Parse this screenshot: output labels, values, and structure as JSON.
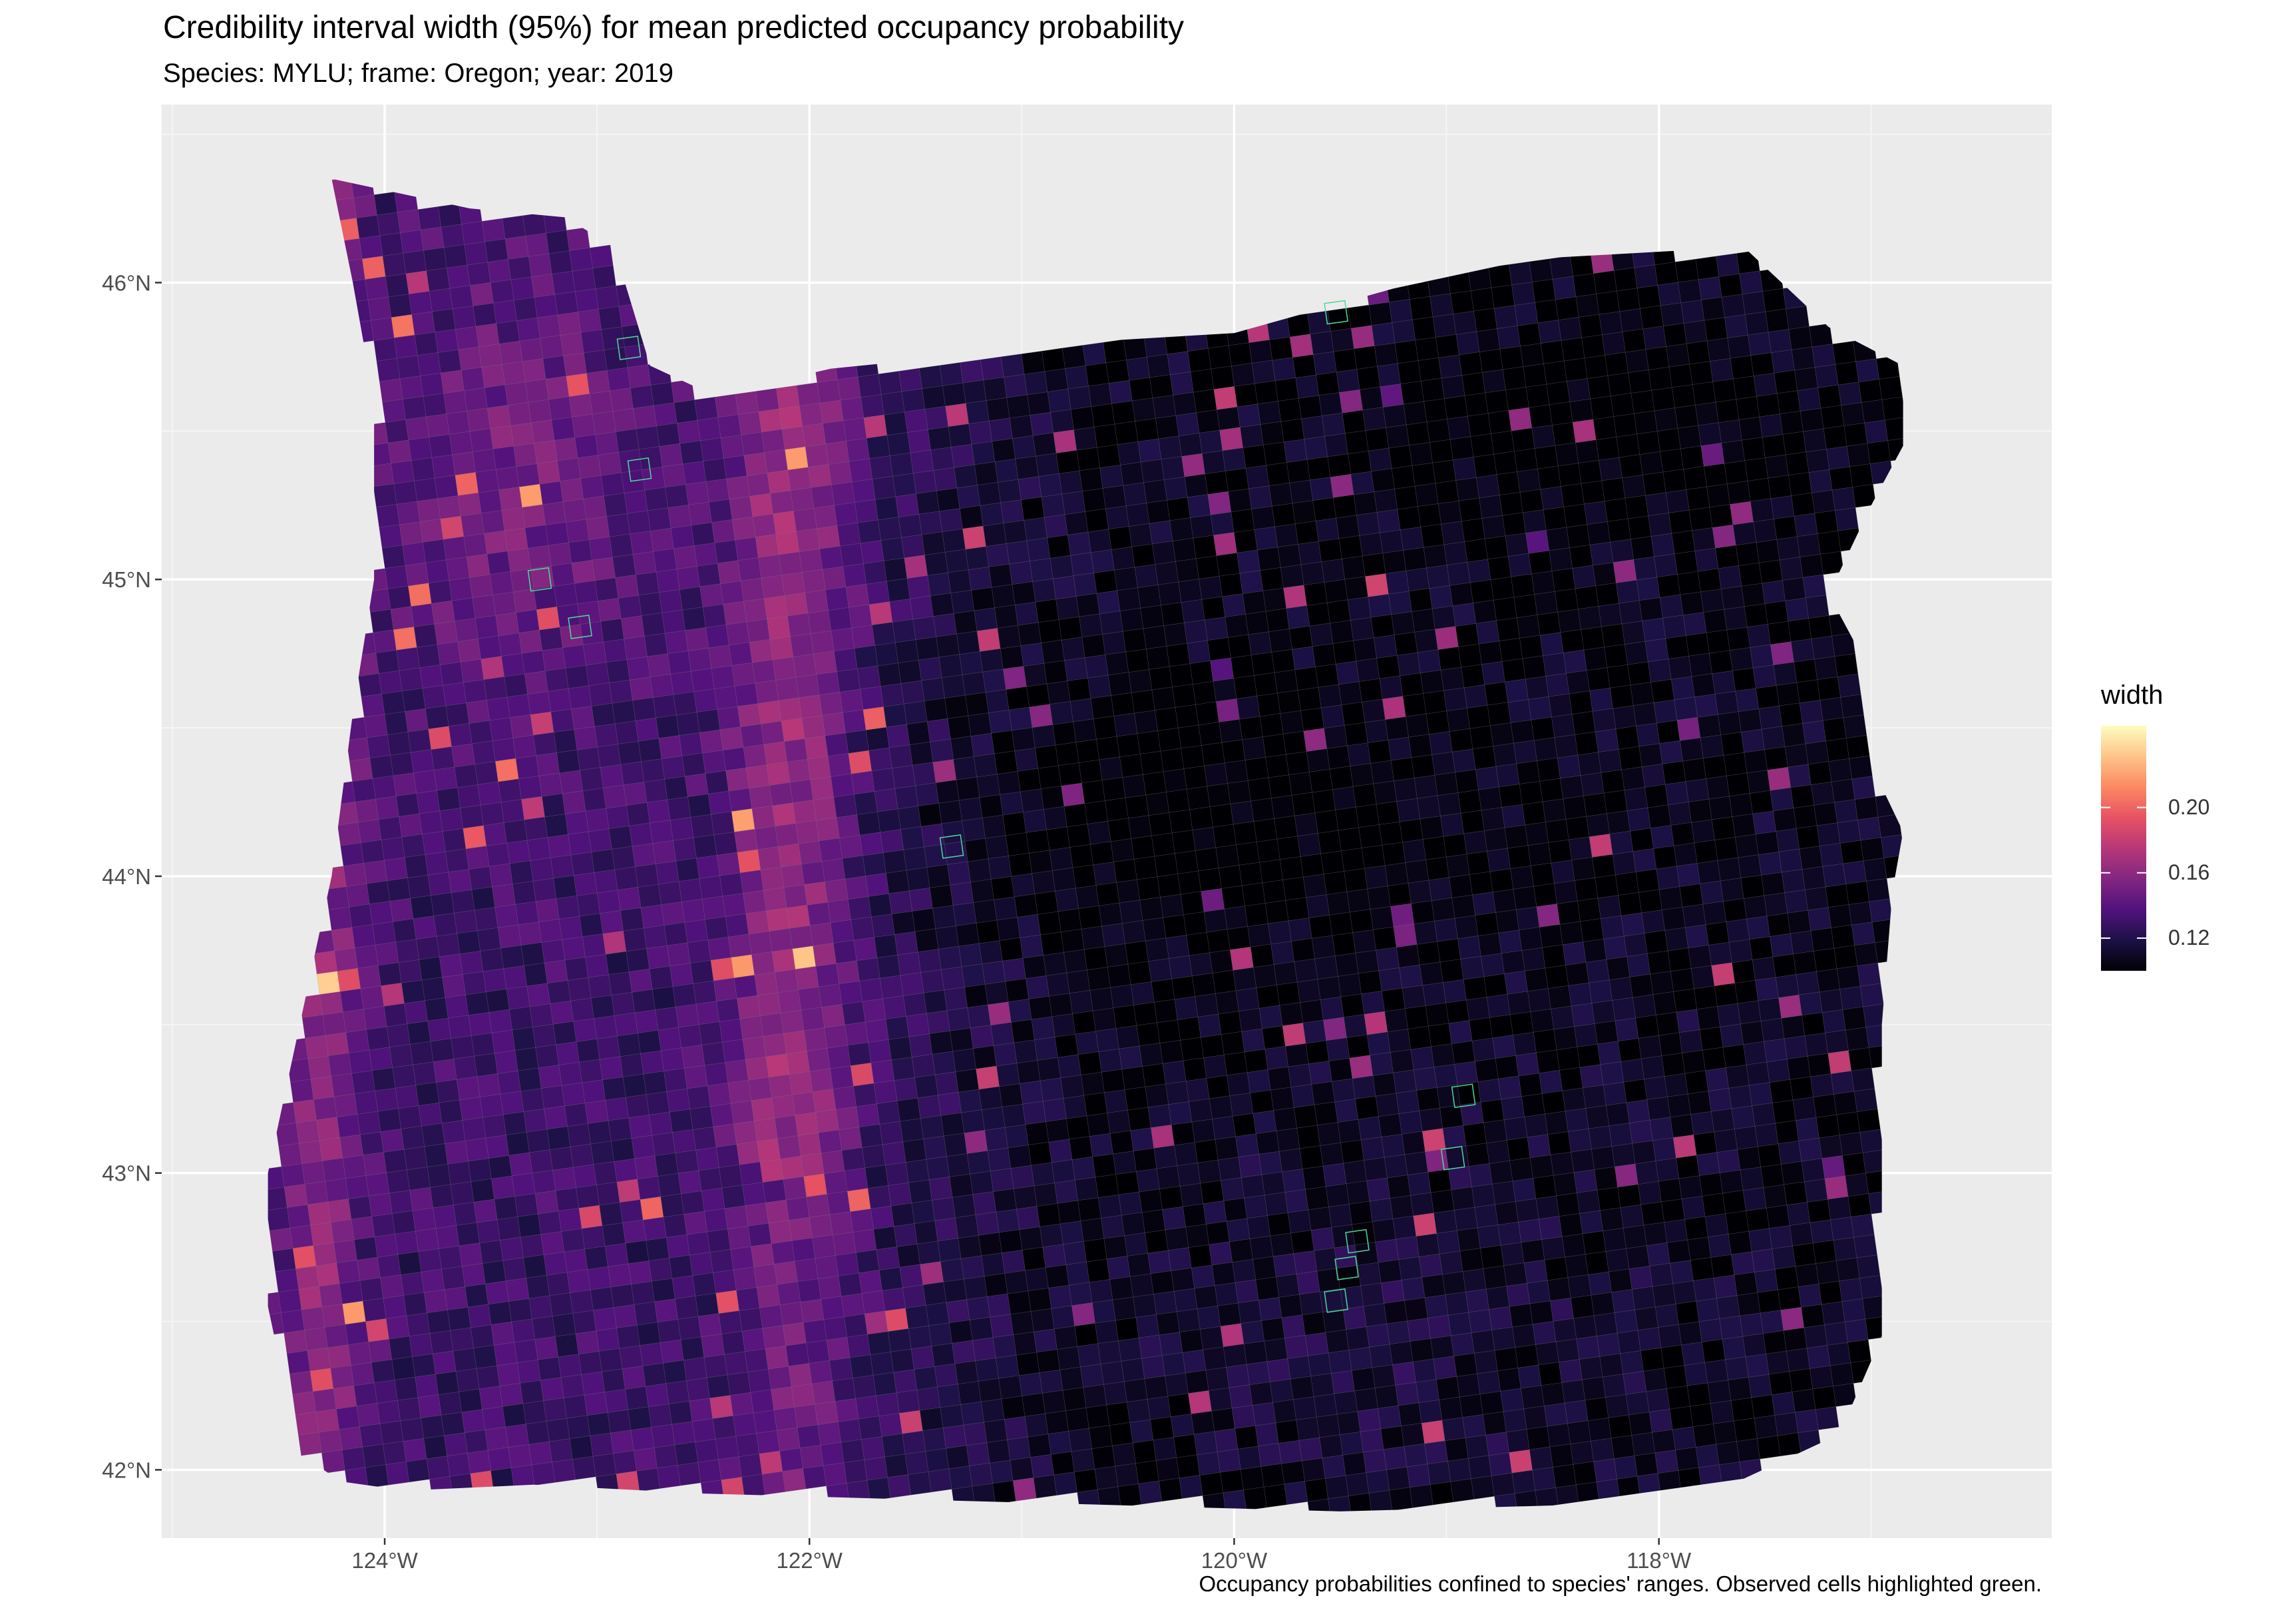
{
  "title": "Credibility interval width (95%) for mean predicted occupancy probability",
  "subtitle": "Species: MYLU; frame: Oregon; year: 2019",
  "caption": "Occupancy probabilities confined to species' ranges. Observed cells highlighted green.",
  "legend": {
    "title": "width",
    "labels": [
      "0.20",
      "0.16",
      "0.12"
    ],
    "values": [
      0.2,
      0.16,
      0.12
    ],
    "range": [
      0.1,
      0.25
    ],
    "colors": [
      "#000004",
      "#1d1147",
      "#51127c",
      "#822681",
      "#b73779",
      "#e75263",
      "#fc8961",
      "#fec488",
      "#fcfdbf"
    ]
  },
  "axes": {
    "x_ticks": [
      {
        "label": "124°W",
        "lon": -124
      },
      {
        "label": "122°W",
        "lon": -122
      },
      {
        "label": "120°W",
        "lon": -120
      },
      {
        "label": "118°W",
        "lon": -118
      }
    ],
    "y_ticks": [
      {
        "label": "46°N",
        "lat": 46
      },
      {
        "label": "45°N",
        "lat": 45
      },
      {
        "label": "44°N",
        "lat": 44
      },
      {
        "label": "43°N",
        "lat": 43
      },
      {
        "label": "42°N",
        "lat": 42
      }
    ],
    "lon_range": [
      -125.05,
      -116.15
    ],
    "lat_range": [
      41.77,
      46.6
    ]
  },
  "map_data": {
    "region": "Oregon",
    "na_color": "#7f7f7f",
    "observed_outline_color": "#4ed99a"
  }
}
